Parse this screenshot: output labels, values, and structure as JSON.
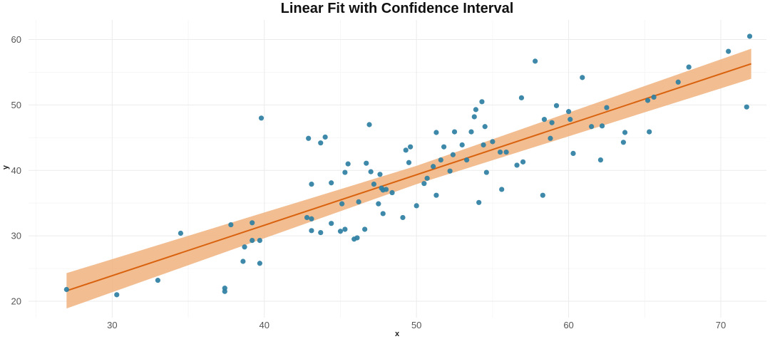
{
  "chart_data": {
    "type": "scatter",
    "title": "Linear Fit with Confidence Interval",
    "xlabel": "x",
    "ylabel": "y",
    "xlim": [
      24.5,
      73
    ],
    "ylim": [
      17.5,
      63
    ],
    "x_ticks": [
      30,
      40,
      50,
      60,
      70
    ],
    "y_ticks": [
      20,
      30,
      40,
      50,
      60
    ],
    "grid": true,
    "legend": "none",
    "colors": {
      "points": "#2e7fa3",
      "fit_line": "#d9620f",
      "band": "#f0b27e"
    },
    "fit": {
      "x_range": [
        27,
        72
      ],
      "line": [
        [
          27,
          21.6
        ],
        [
          72,
          56.3
        ]
      ],
      "upper": [
        [
          27,
          24.3
        ],
        [
          50,
          40.7
        ],
        [
          72,
          58.6
        ]
      ],
      "lower": [
        [
          27,
          18.9
        ],
        [
          50,
          37.9
        ],
        [
          72,
          54.0
        ]
      ]
    },
    "points": [
      [
        27,
        21.8
      ],
      [
        30.3,
        21.0
      ],
      [
        33,
        23.2
      ],
      [
        34.5,
        30.4
      ],
      [
        37.4,
        22.0
      ],
      [
        37.4,
        21.5
      ],
      [
        37.8,
        31.7
      ],
      [
        38.6,
        26.1
      ],
      [
        38.7,
        28.3
      ],
      [
        39.2,
        29.3
      ],
      [
        39.2,
        32.0
      ],
      [
        39.7,
        25.8
      ],
      [
        39.7,
        29.3
      ],
      [
        39.8,
        48.0
      ],
      [
        42.8,
        32.8
      ],
      [
        42.9,
        44.9
      ],
      [
        43.1,
        37.9
      ],
      [
        43.1,
        32.6
      ],
      [
        43.1,
        30.8
      ],
      [
        43.7,
        30.5
      ],
      [
        43.7,
        44.2
      ],
      [
        44.0,
        45.1
      ],
      [
        44.4,
        38.1
      ],
      [
        44.4,
        31.9
      ],
      [
        45.0,
        30.7
      ],
      [
        45.1,
        34.9
      ],
      [
        45.3,
        31.0
      ],
      [
        45.3,
        39.7
      ],
      [
        45.5,
        41.0
      ],
      [
        45.9,
        29.5
      ],
      [
        46.1,
        29.7
      ],
      [
        46.2,
        35.2
      ],
      [
        46.6,
        31.0
      ],
      [
        46.7,
        41.1
      ],
      [
        46.9,
        47.0
      ],
      [
        47.0,
        39.8
      ],
      [
        47.2,
        37.9
      ],
      [
        47.5,
        34.9
      ],
      [
        47.6,
        39.4
      ],
      [
        47.7,
        37.3
      ],
      [
        47.8,
        33.4
      ],
      [
        47.8,
        37.0
      ],
      [
        48.0,
        37.1
      ],
      [
        48.4,
        36.6
      ],
      [
        49.1,
        32.8
      ],
      [
        49.3,
        43.1
      ],
      [
        49.5,
        41.2
      ],
      [
        49.6,
        43.6
      ],
      [
        50.0,
        34.6
      ],
      [
        50.5,
        38.0
      ],
      [
        50.7,
        38.8
      ],
      [
        51.1,
        40.6
      ],
      [
        51.3,
        45.8
      ],
      [
        51.3,
        36.2
      ],
      [
        51.6,
        41.6
      ],
      [
        51.8,
        43.6
      ],
      [
        52.2,
        39.9
      ],
      [
        52.4,
        42.4
      ],
      [
        52.5,
        45.9
      ],
      [
        53.0,
        43.9
      ],
      [
        53.3,
        41.6
      ],
      [
        53.6,
        45.9
      ],
      [
        53.8,
        48.2
      ],
      [
        53.9,
        49.3
      ],
      [
        54.1,
        35.1
      ],
      [
        54.3,
        50.5
      ],
      [
        54.4,
        43.9
      ],
      [
        54.5,
        46.7
      ],
      [
        54.6,
        39.7
      ],
      [
        55.0,
        44.4
      ],
      [
        55.5,
        42.8
      ],
      [
        55.6,
        37.1
      ],
      [
        55.9,
        42.8
      ],
      [
        56.6,
        40.8
      ],
      [
        56.9,
        51.1
      ],
      [
        57.0,
        41.3
      ],
      [
        57.8,
        56.7
      ],
      [
        58.3,
        36.2
      ],
      [
        58.4,
        47.8
      ],
      [
        58.8,
        44.9
      ],
      [
        58.9,
        47.3
      ],
      [
        59.2,
        49.9
      ],
      [
        60.0,
        49.0
      ],
      [
        60.1,
        47.8
      ],
      [
        60.3,
        42.6
      ],
      [
        60.9,
        54.2
      ],
      [
        61.5,
        46.7
      ],
      [
        62.1,
        41.6
      ],
      [
        62.2,
        46.8
      ],
      [
        62.5,
        49.6
      ],
      [
        63.6,
        44.3
      ],
      [
        63.7,
        45.8
      ],
      [
        65.2,
        50.7
      ],
      [
        65.3,
        45.9
      ],
      [
        65.6,
        51.2
      ],
      [
        67.2,
        53.5
      ],
      [
        67.9,
        55.8
      ],
      [
        70.5,
        58.2
      ],
      [
        71.7,
        49.7
      ],
      [
        71.9,
        60.5
      ]
    ]
  }
}
